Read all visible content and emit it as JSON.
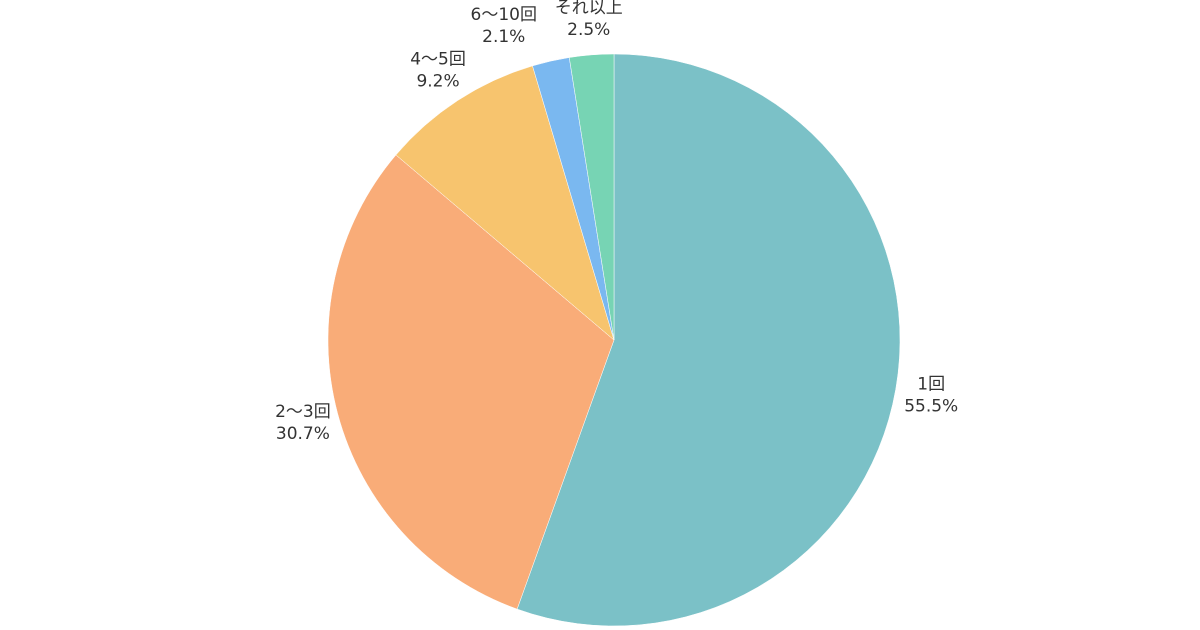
{
  "chart_data": {
    "type": "pie",
    "categories": [
      "1回",
      "2〜3回",
      "4〜5回",
      "6〜10回",
      "それ以上"
    ],
    "values": [
      55.5,
      30.7,
      9.2,
      2.1,
      2.5
    ],
    "value_labels": [
      "55.5%",
      "30.7%",
      "9.2%",
      "2.1%",
      "2.5%"
    ],
    "colors": [
      "#7bc1c7",
      "#f9ac78",
      "#f7c46e",
      "#7ab8f0",
      "#77d4b4"
    ]
  }
}
